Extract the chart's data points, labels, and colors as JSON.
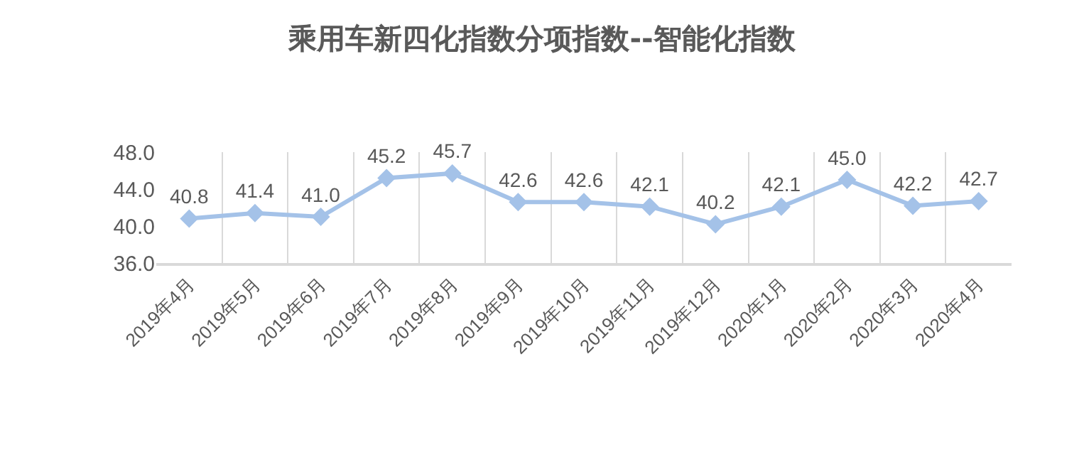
{
  "chart_data": {
    "type": "line",
    "title": "乘用车新四化指数分项指数--智能化指数",
    "categories": [
      "2019年4月",
      "2019年5月",
      "2019年6月",
      "2019年7月",
      "2019年8月",
      "2019年9月",
      "2019年10月",
      "2019年11月",
      "2019年12月",
      "2020年1月",
      "2020年2月",
      "2020年3月",
      "2020年4月"
    ],
    "series": [
      {
        "color": "#a4c2e8",
        "values": [
          40.8,
          41.4,
          41.0,
          45.2,
          45.7,
          42.6,
          42.6,
          42.1,
          40.2,
          42.1,
          45.0,
          42.2,
          42.7
        ],
        "value_labels": [
          "40.8",
          "41.4",
          "41.0",
          "45.2",
          "45.7",
          "42.6",
          "42.6",
          "42.1",
          "40.2",
          "42.1",
          "45.0",
          "42.2",
          "42.7"
        ]
      }
    ],
    "ylim": [
      36,
      48
    ],
    "yticks": [
      {
        "value": 36,
        "label": "36.0"
      },
      {
        "value": 40,
        "label": "40.0"
      },
      {
        "value": 44,
        "label": "44.0"
      },
      {
        "value": 48,
        "label": "48.0"
      }
    ],
    "grid": "x",
    "marker": "diamond",
    "line_style": "solid"
  }
}
